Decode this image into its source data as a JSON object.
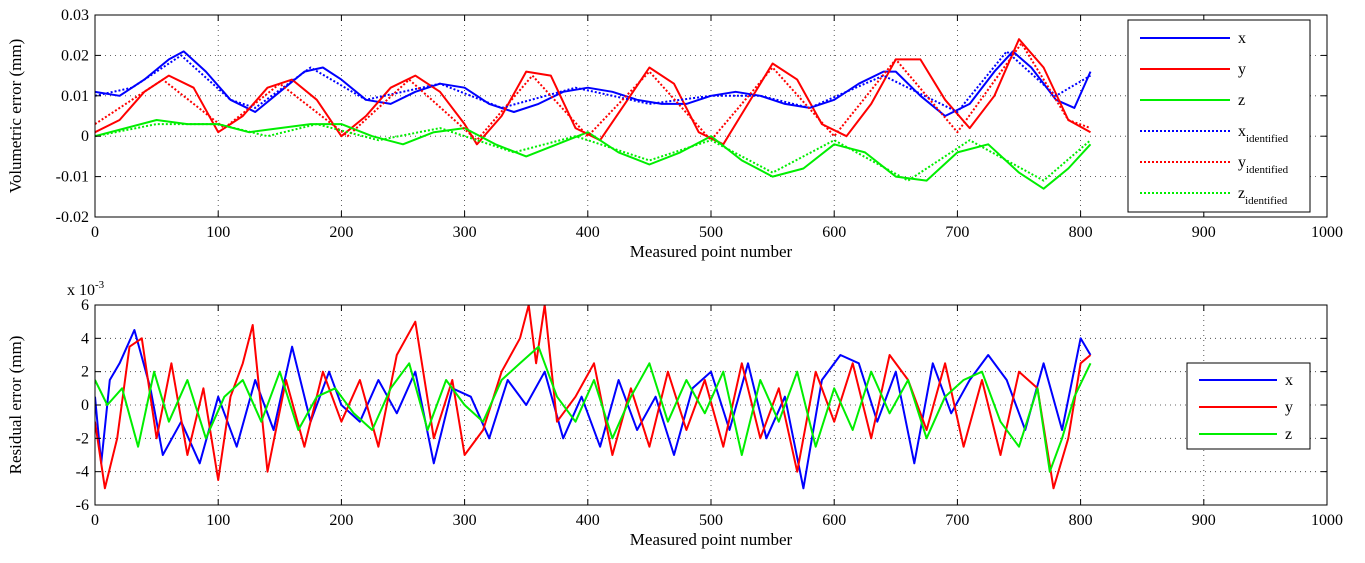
{
  "chart_data": [
    {
      "type": "line",
      "xlabel": "Measured point number",
      "ylabel": "Volumetric error (mm)",
      "xlim": [
        0,
        1000
      ],
      "ylim": [
        -0.02,
        0.03
      ],
      "xticks": [
        0,
        100,
        200,
        300,
        400,
        500,
        600,
        700,
        800,
        900,
        1000
      ],
      "xtick_labels": [
        "0",
        "100",
        "200",
        "300",
        "400",
        "500",
        "600",
        "700",
        "800",
        "900",
        "1000"
      ],
      "yticks": [
        -0.02,
        -0.01,
        0,
        0.01,
        0.02,
        0.03
      ],
      "ytick_labels": [
        "-0.02",
        "-0.01",
        "0",
        "0.01",
        "0.02",
        "0.03"
      ],
      "grid": true,
      "legend_position": "top-right",
      "series": [
        {
          "name": "x",
          "base": "x",
          "subscript": "",
          "style": "solid",
          "color": "#0000ff",
          "x": [
            0,
            20,
            40,
            60,
            72,
            90,
            110,
            130,
            150,
            170,
            185,
            200,
            220,
            240,
            260,
            280,
            300,
            320,
            340,
            360,
            380,
            400,
            420,
            440,
            460,
            480,
            500,
            520,
            540,
            560,
            580,
            600,
            620,
            640,
            650,
            670,
            690,
            710,
            730,
            745,
            760,
            780,
            795,
            808
          ],
          "y": [
            0.011,
            0.01,
            0.014,
            0.019,
            0.021,
            0.016,
            0.009,
            0.006,
            0.011,
            0.016,
            0.017,
            0.014,
            0.009,
            0.008,
            0.011,
            0.013,
            0.012,
            0.008,
            0.006,
            0.008,
            0.011,
            0.012,
            0.011,
            0.009,
            0.008,
            0.008,
            0.01,
            0.011,
            0.01,
            0.008,
            0.007,
            0.009,
            0.013,
            0.016,
            0.016,
            0.01,
            0.005,
            0.008,
            0.016,
            0.021,
            0.017,
            0.009,
            0.007,
            0.016
          ]
        },
        {
          "name": "y",
          "base": "y",
          "subscript": "",
          "style": "solid",
          "color": "#ff0000",
          "x": [
            0,
            20,
            40,
            60,
            80,
            100,
            120,
            140,
            160,
            180,
            200,
            220,
            240,
            260,
            280,
            300,
            310,
            330,
            350,
            370,
            390,
            410,
            430,
            450,
            470,
            490,
            510,
            530,
            550,
            570,
            590,
            610,
            630,
            650,
            670,
            690,
            710,
            730,
            750,
            770,
            790,
            808
          ],
          "y": [
            0.001,
            0.004,
            0.011,
            0.015,
            0.012,
            0.001,
            0.005,
            0.012,
            0.014,
            0.009,
            0.0,
            0.005,
            0.012,
            0.015,
            0.011,
            0.003,
            -0.002,
            0.005,
            0.016,
            0.015,
            0.002,
            -0.001,
            0.008,
            0.017,
            0.013,
            0.001,
            -0.002,
            0.008,
            0.018,
            0.014,
            0.003,
            0.0,
            0.008,
            0.019,
            0.019,
            0.009,
            0.002,
            0.01,
            0.024,
            0.017,
            0.004,
            0.001
          ]
        },
        {
          "name": "z",
          "base": "z",
          "subscript": "",
          "style": "solid",
          "color": "#00ee00",
          "x": [
            0,
            25,
            50,
            75,
            100,
            125,
            150,
            175,
            200,
            225,
            250,
            275,
            300,
            325,
            350,
            375,
            400,
            425,
            450,
            475,
            500,
            525,
            550,
            575,
            600,
            625,
            650,
            675,
            700,
            725,
            750,
            770,
            790,
            808
          ],
          "y": [
            0.0,
            0.002,
            0.004,
            0.003,
            0.003,
            0.001,
            0.002,
            0.003,
            0.003,
            0.0,
            -0.002,
            0.001,
            0.002,
            -0.002,
            -0.005,
            -0.002,
            0.001,
            -0.004,
            -0.007,
            -0.004,
            0.0,
            -0.006,
            -0.01,
            -0.008,
            -0.002,
            -0.004,
            -0.01,
            -0.011,
            -0.004,
            -0.002,
            -0.009,
            -0.013,
            -0.008,
            -0.002
          ]
        },
        {
          "name": "x_identified",
          "base": "x",
          "subscript": "identified",
          "style": "dotted",
          "color": "#0000ff",
          "x": [
            0,
            30,
            70,
            110,
            130,
            175,
            220,
            280,
            330,
            390,
            450,
            500,
            540,
            580,
            640,
            700,
            740,
            780,
            808
          ],
          "y": [
            0.01,
            0.012,
            0.02,
            0.009,
            0.007,
            0.017,
            0.009,
            0.013,
            0.007,
            0.012,
            0.008,
            0.01,
            0.01,
            0.007,
            0.015,
            0.006,
            0.021,
            0.01,
            0.015
          ]
        },
        {
          "name": "y_identified",
          "base": "y",
          "subscript": "identified",
          "style": "dotted",
          "color": "#ff0000",
          "x": [
            0,
            55,
            105,
            150,
            205,
            255,
            310,
            355,
            400,
            450,
            500,
            550,
            600,
            650,
            700,
            752,
            790,
            808
          ],
          "y": [
            0.003,
            0.014,
            0.002,
            0.013,
            0.0,
            0.014,
            -0.001,
            0.015,
            0.0,
            0.016,
            -0.001,
            0.017,
            0.0,
            0.019,
            0.001,
            0.023,
            0.004,
            0.002
          ]
        },
        {
          "name": "z_identified",
          "base": "z",
          "subscript": "identified",
          "style": "dotted",
          "color": "#00ee00",
          "x": [
            0,
            50,
            100,
            140,
            180,
            230,
            280,
            340,
            390,
            450,
            500,
            550,
            600,
            660,
            710,
            770,
            808
          ],
          "y": [
            0.0,
            0.003,
            0.003,
            0.0,
            0.003,
            -0.001,
            0.002,
            -0.004,
            0.0,
            -0.006,
            -0.001,
            -0.009,
            -0.001,
            -0.011,
            -0.001,
            -0.011,
            -0.001
          ]
        }
      ]
    },
    {
      "type": "line",
      "xlabel": "Measured point number",
      "ylabel": "Residual error (mm)",
      "y_multiplier_prefix": "x 10",
      "y_multiplier_exponent": "-3",
      "xlim": [
        0,
        1000
      ],
      "ylim": [
        -6,
        6
      ],
      "xticks": [
        0,
        100,
        200,
        300,
        400,
        500,
        600,
        700,
        800,
        900,
        1000
      ],
      "xtick_labels": [
        "0",
        "100",
        "200",
        "300",
        "400",
        "500",
        "600",
        "700",
        "800",
        "900",
        "1000"
      ],
      "yticks": [
        -6,
        -4,
        -2,
        0,
        2,
        4,
        6
      ],
      "ytick_labels": [
        "-6",
        "-4",
        "-2",
        "0",
        "2",
        "4",
        "6"
      ],
      "grid": true,
      "legend_position": "right",
      "series": [
        {
          "name": "x",
          "color": "#0000ff",
          "x": [
            0,
            5,
            12,
            20,
            32,
            45,
            55,
            70,
            85,
            100,
            115,
            130,
            145,
            160,
            175,
            190,
            200,
            215,
            230,
            245,
            260,
            275,
            290,
            305,
            320,
            335,
            350,
            365,
            380,
            395,
            410,
            425,
            440,
            455,
            470,
            485,
            500,
            515,
            530,
            545,
            560,
            575,
            590,
            605,
            620,
            635,
            650,
            665,
            680,
            695,
            710,
            725,
            740,
            755,
            770,
            785,
            800,
            808
          ],
          "y": [
            0.5,
            -3.5,
            1.5,
            2.5,
            4.5,
            1.0,
            -3.0,
            -1.0,
            -3.5,
            0.5,
            -2.5,
            1.5,
            -1.5,
            3.5,
            -1.0,
            2.0,
            0.0,
            -1.0,
            1.5,
            -0.5,
            2.0,
            -3.5,
            1.0,
            0.5,
            -2.0,
            1.5,
            0.0,
            2.0,
            -2.0,
            0.5,
            -2.5,
            1.5,
            -1.5,
            0.5,
            -3.0,
            1.0,
            2.0,
            -1.5,
            2.5,
            -2.0,
            0.5,
            -5.0,
            1.5,
            3.0,
            2.5,
            -1.0,
            2.0,
            -3.5,
            2.5,
            -0.5,
            1.5,
            3.0,
            1.5,
            -1.5,
            2.5,
            -1.5,
            4.0,
            3.0
          ]
        },
        {
          "name": "y",
          "color": "#ff0000",
          "x": [
            0,
            8,
            18,
            28,
            38,
            50,
            62,
            75,
            88,
            100,
            110,
            120,
            128,
            140,
            155,
            170,
            185,
            200,
            215,
            230,
            245,
            260,
            275,
            290,
            300,
            315,
            330,
            345,
            352,
            358,
            365,
            375,
            390,
            405,
            420,
            435,
            450,
            465,
            480,
            495,
            510,
            525,
            540,
            555,
            570,
            585,
            600,
            615,
            630,
            645,
            660,
            675,
            690,
            705,
            720,
            735,
            750,
            765,
            778,
            790,
            800,
            808
          ],
          "y": [
            -1.0,
            -5.0,
            -2.0,
            3.5,
            4.0,
            -2.0,
            2.5,
            -3.0,
            1.0,
            -4.5,
            0.5,
            2.5,
            4.8,
            -4.0,
            1.5,
            -2.5,
            2.0,
            -1.0,
            1.5,
            -2.5,
            3.0,
            5.0,
            -2.0,
            1.5,
            -3.0,
            -1.5,
            2.0,
            4.0,
            6.0,
            2.5,
            6.0,
            -1.0,
            0.5,
            2.5,
            -3.0,
            1.0,
            -2.5,
            2.0,
            -1.5,
            1.5,
            -2.5,
            2.5,
            -2.0,
            1.0,
            -4.0,
            2.0,
            -1.0,
            2.5,
            -2.0,
            3.0,
            1.5,
            -1.5,
            2.5,
            -2.5,
            1.5,
            -3.0,
            2.0,
            1.0,
            -5.0,
            -2.0,
            2.5,
            3.0
          ]
        },
        {
          "name": "z",
          "color": "#00ee00",
          "x": [
            0,
            10,
            22,
            35,
            48,
            60,
            75,
            90,
            105,
            120,
            135,
            150,
            165,
            180,
            195,
            210,
            225,
            240,
            255,
            270,
            285,
            300,
            315,
            330,
            345,
            360,
            375,
            390,
            405,
            420,
            435,
            450,
            465,
            480,
            495,
            510,
            525,
            540,
            555,
            570,
            585,
            600,
            615,
            630,
            645,
            660,
            675,
            690,
            705,
            720,
            735,
            750,
            765,
            775,
            785,
            795,
            808
          ],
          "y": [
            1.5,
            0.0,
            1.0,
            -2.5,
            2.0,
            -1.0,
            1.5,
            -2.0,
            0.5,
            1.5,
            -1.0,
            2.0,
            -1.5,
            0.5,
            1.0,
            -0.5,
            -1.5,
            1.0,
            2.5,
            -1.5,
            1.5,
            0.0,
            -1.0,
            1.5,
            2.5,
            3.5,
            0.5,
            -1.0,
            1.5,
            -2.0,
            0.5,
            2.5,
            -1.0,
            1.5,
            -0.5,
            2.0,
            -3.0,
            1.5,
            -1.0,
            2.0,
            -2.5,
            1.0,
            -1.5,
            2.0,
            -0.5,
            1.5,
            -2.0,
            0.5,
            1.5,
            2.0,
            -1.0,
            -2.5,
            1.0,
            -4.0,
            -2.0,
            0.5,
            2.5
          ]
        }
      ]
    }
  ]
}
